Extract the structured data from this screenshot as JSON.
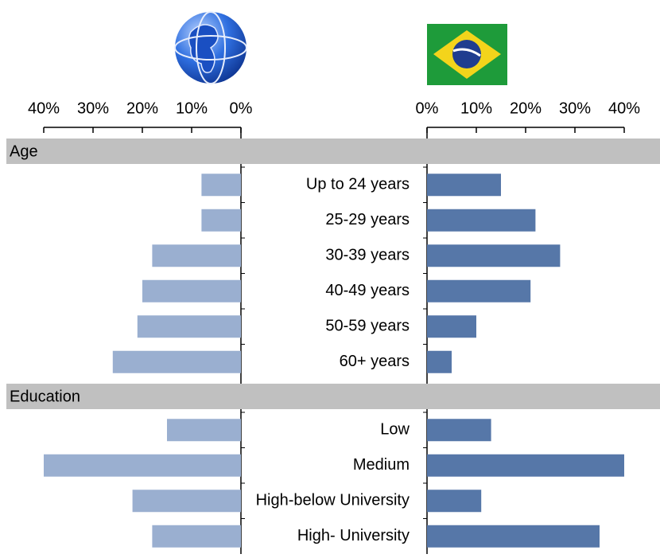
{
  "chart_data": {
    "type": "butterfly",
    "xlim": [
      0,
      40
    ],
    "xticks": [
      {
        "value": 0,
        "label": "0%"
      },
      {
        "value": 10,
        "label": "10%"
      },
      {
        "value": 20,
        "label": "20%"
      },
      {
        "value": 30,
        "label": "30%"
      },
      {
        "value": 40,
        "label": "40%"
      }
    ],
    "sections": [
      {
        "title": "Age",
        "categories": [
          "Up to 24 years",
          "25-29 years",
          "30-39 years",
          "40-49 years",
          "50-59 years",
          "60+ years"
        ]
      },
      {
        "title": "Education",
        "categories": [
          "Low",
          "Medium",
          "High-below University",
          "High- University"
        ]
      }
    ],
    "series": [
      {
        "color": "#9aafd0",
        "values": [
          8,
          8,
          18,
          20,
          21,
          26,
          15,
          40,
          22,
          18
        ]
      },
      {
        "color": "#5677a8",
        "values": [
          15,
          22,
          27,
          21,
          10,
          5,
          13,
          40,
          11,
          35
        ]
      }
    ]
  }
}
